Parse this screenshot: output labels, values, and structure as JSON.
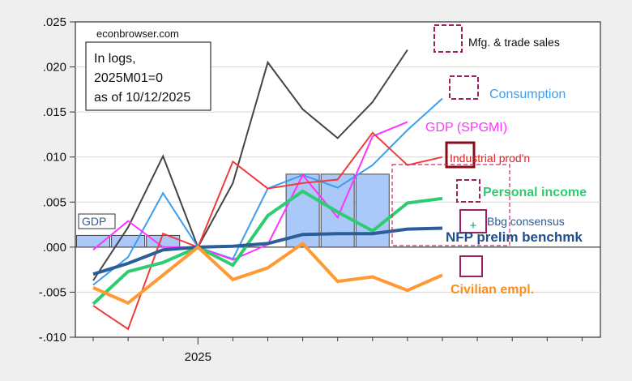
{
  "chart_data": {
    "type": "line",
    "title": "",
    "source_note": "econbrowser.com",
    "annotation_lines": [
      "In logs,",
      "2025M01=0",
      "as of 10/12/2025"
    ],
    "xlabel": "",
    "ylabel": "",
    "ylim": [
      -0.01,
      0.025
    ],
    "yticks": [
      {
        "value": 0.025,
        "label": ".025"
      },
      {
        "value": 0.02,
        "label": ".020"
      },
      {
        "value": 0.015,
        "label": ".015"
      },
      {
        "value": 0.01,
        "label": ".010"
      },
      {
        "value": 0.005,
        "label": ".005"
      },
      {
        "value": 0.0,
        "label": ".000"
      },
      {
        "value": -0.005,
        "label": "-.005"
      },
      {
        "value": -0.01,
        "label": "-.010"
      }
    ],
    "x": [
      "2024M10",
      "2024M11",
      "2024M12",
      "2025M01",
      "2025M02",
      "2025M03",
      "2025M04",
      "2025M05",
      "2025M06",
      "2025M07",
      "2025M08",
      "2025M09",
      "2025M10",
      "2025M11",
      "2025M12"
    ],
    "x_major_label": {
      "label": "2025",
      "at": "2025M01"
    },
    "grid": true,
    "bars": {
      "name": "GDP",
      "color": "#aac8f8",
      "periods": [
        {
          "quarter": "2024Q4",
          "months": [
            "2024M10",
            "2024M11",
            "2024M12"
          ],
          "value": 0.0013
        },
        {
          "quarter": "2025Q2",
          "months": [
            "2025M04",
            "2025M05",
            "2025M06"
          ],
          "value": 0.0081
        }
      ]
    },
    "series": [
      {
        "name": "Mfg. & trade sales",
        "color": "#444444",
        "width": 2,
        "values": [
          -0.0037,
          0.0022,
          0.0101,
          0.0,
          0.0071,
          0.0205,
          0.0153,
          0.0121,
          0.0161,
          0.0219,
          null,
          null,
          null,
          null,
          null
        ]
      },
      {
        "name": "Consumption",
        "color": "#3d9df0",
        "width": 2,
        "values": [
          -0.0042,
          -0.0011,
          0.006,
          0.0,
          -0.0013,
          0.0065,
          0.008,
          0.0066,
          0.0091,
          0.013,
          0.0165,
          null,
          null,
          null,
          null
        ]
      },
      {
        "name": "GDP (SPGMI)",
        "color": "#ff33ff",
        "width": 2,
        "values": [
          -0.0003,
          0.0029,
          0.0,
          0.0,
          -0.0014,
          0.0003,
          0.008,
          0.0033,
          0.0123,
          0.0139,
          null,
          null,
          null,
          null,
          null
        ]
      },
      {
        "name": "Industrial prod'n",
        "color": "#f03b3b",
        "width": 2,
        "values": [
          -0.0065,
          -0.0091,
          0.0015,
          0.0,
          0.0095,
          0.0065,
          0.0071,
          0.0075,
          0.0127,
          0.0091,
          0.01,
          null,
          null,
          null,
          null
        ]
      },
      {
        "name": "Personal income",
        "color": "#2ecc71",
        "width": 4,
        "values": [
          -0.0063,
          -0.0027,
          -0.0017,
          0.0,
          -0.002,
          0.0035,
          0.0062,
          0.0039,
          0.0018,
          0.0049,
          0.0054,
          null,
          null,
          null,
          null
        ]
      },
      {
        "name": "NFP prelim benchmk",
        "color": "#2a5d9a",
        "width": 4,
        "values": [
          -0.003,
          -0.0018,
          -0.0003,
          0.0,
          0.0001,
          0.0004,
          0.0014,
          0.0015,
          0.0015,
          0.002,
          0.0021,
          null,
          null,
          null,
          null
        ]
      },
      {
        "name": "Civilian empl.",
        "color": "#ff9933",
        "width": 4,
        "values": [
          -0.0045,
          -0.0062,
          -0.0031,
          0.0,
          -0.0036,
          -0.0023,
          0.0004,
          -0.0038,
          -0.0033,
          -0.0048,
          -0.0031,
          null,
          null,
          null,
          null
        ]
      }
    ],
    "labels": [
      {
        "text": "Mfg. & trade sales",
        "color": "#111111"
      },
      {
        "text": "Consumption",
        "color": "#3d9df0"
      },
      {
        "text": "GDP (SPGMI)",
        "color": "#ff33ff"
      },
      {
        "text": "Industrial prod'n",
        "color": "#e02020"
      },
      {
        "text": "Personal income",
        "color": "#2ecc71"
      },
      {
        "text": "Bbg consensus",
        "color": "#2a5d9a"
      },
      {
        "text": "NFP prelim benchmk",
        "color": "#1f4f8c"
      },
      {
        "text": "Civilian empl.",
        "color": "#ff8c1a"
      },
      {
        "text": "GDP",
        "color": "#2a5d9a"
      }
    ],
    "marker_color": "#a0205f",
    "bbg_plus_color": "#1a8a8a"
  }
}
